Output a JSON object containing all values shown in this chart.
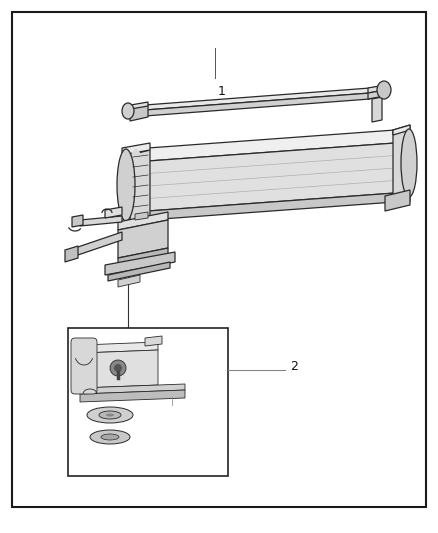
{
  "background_color": "#ffffff",
  "border_color": "#1a1a1a",
  "border_linewidth": 1.5,
  "fig_width": 4.38,
  "fig_height": 5.33,
  "label_1_text": "1",
  "label_2_text": "2",
  "label_fontsize": 9,
  "lc": "#2a2a2a",
  "lc_light": "#888888",
  "fill_white": "#ffffff",
  "fill_light": "#f0f0f0",
  "fill_mid": "#dcdcdc",
  "fill_dark": "#c0c0c0",
  "fill_darker": "#a8a8a8"
}
